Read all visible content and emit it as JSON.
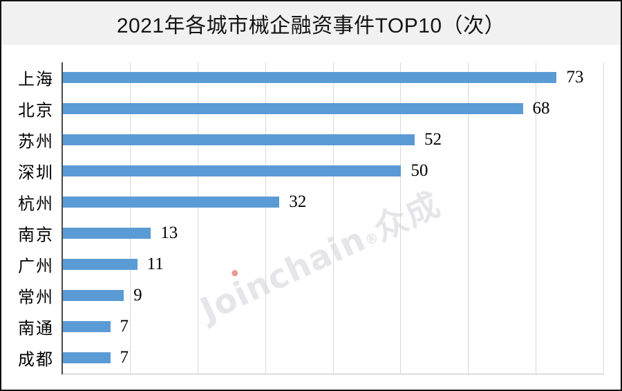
{
  "chart_data": {
    "type": "bar",
    "orientation": "horizontal",
    "title": "2021年各城市械企融资事件TOP10（次）",
    "categories": [
      "上海",
      "北京",
      "苏州",
      "深圳",
      "杭州",
      "南京",
      "广州",
      "常州",
      "南通",
      "成都"
    ],
    "values": [
      73,
      68,
      52,
      50,
      32,
      13,
      11,
      9,
      7,
      7
    ],
    "xlim": [
      0,
      80
    ],
    "gridline_step": 10,
    "grid": "vertical-only",
    "value_labels": "outside-end",
    "legend": "none",
    "axis_tick_labels": "none"
  },
  "title_bar": {
    "title": "2021年各城市械企融资事件TOP10（次）",
    "background": "#f1f1f1"
  },
  "watermark": {
    "text": "Joinchain",
    "reg": "®",
    "cjk": "众成",
    "color": "#e6e6ea",
    "dot_color": "#e89a94"
  },
  "colors": {
    "bar": "#5b9bd5",
    "gridline": "#d8d8d8",
    "axis": "#4a4a4a",
    "baseline": "#bfbfbf",
    "title_text": "#141414"
  }
}
